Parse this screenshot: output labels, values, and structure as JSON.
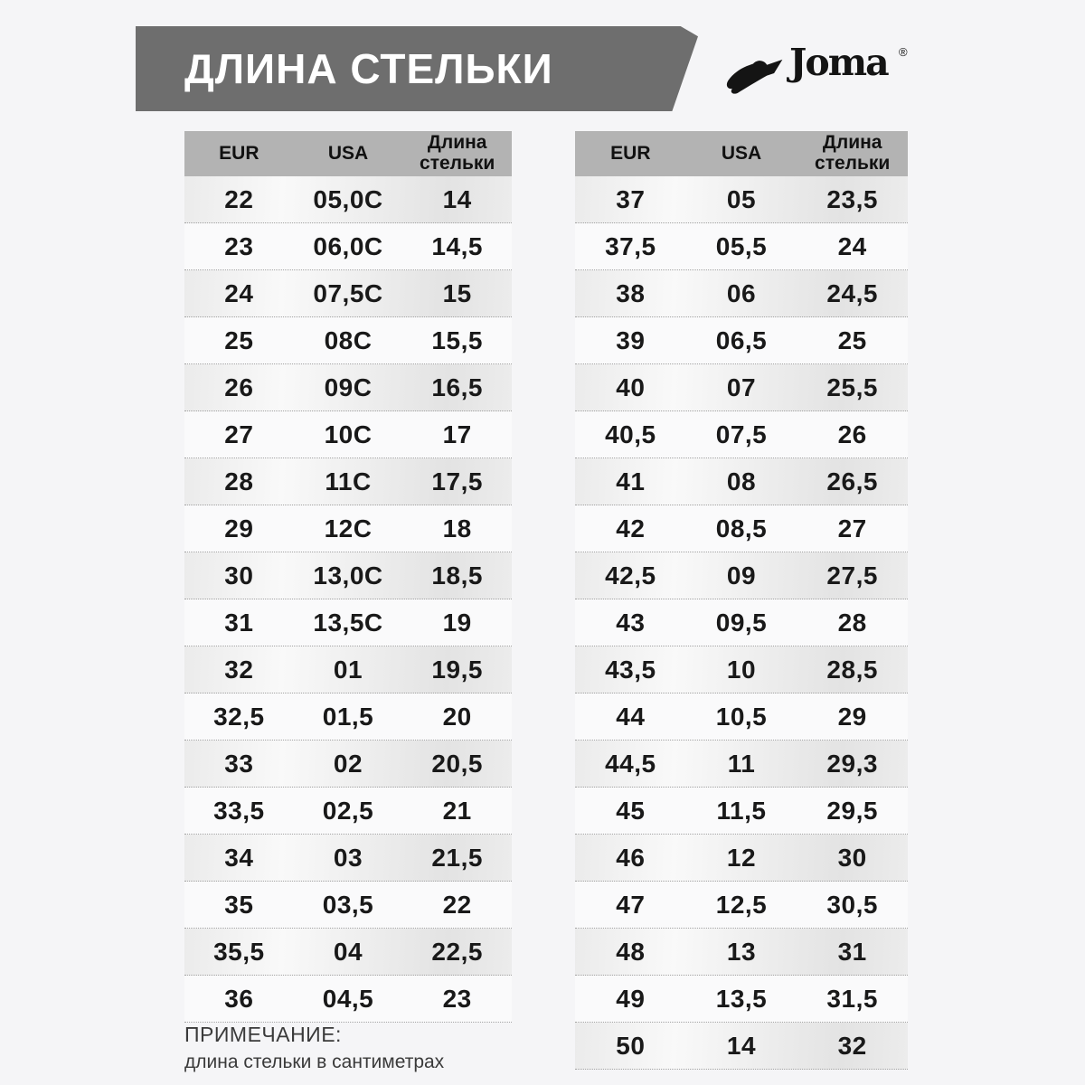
{
  "page_title": "ДЛИНА СТЕЛЬКИ",
  "logo": {
    "text": "Joma",
    "registered": "®",
    "icon": "joma-swoosh-icon"
  },
  "chart_data": [
    {
      "type": "table",
      "name": "left-size-table",
      "columns": [
        "EUR",
        "USA",
        "Длина стельки"
      ],
      "rows": [
        [
          "22",
          "05,0C",
          "14"
        ],
        [
          "23",
          "06,0C",
          "14,5"
        ],
        [
          "24",
          "07,5C",
          "15"
        ],
        [
          "25",
          "08C",
          "15,5"
        ],
        [
          "26",
          "09C",
          "16,5"
        ],
        [
          "27",
          "10C",
          "17"
        ],
        [
          "28",
          "11C",
          "17,5"
        ],
        [
          "29",
          "12C",
          "18"
        ],
        [
          "30",
          "13,0C",
          "18,5"
        ],
        [
          "31",
          "13,5C",
          "19"
        ],
        [
          "32",
          "01",
          "19,5"
        ],
        [
          "32,5",
          "01,5",
          "20"
        ],
        [
          "33",
          "02",
          "20,5"
        ],
        [
          "33,5",
          "02,5",
          "21"
        ],
        [
          "34",
          "03",
          "21,5"
        ],
        [
          "35",
          "03,5",
          "22"
        ],
        [
          "35,5",
          "04",
          "22,5"
        ],
        [
          "36",
          "04,5",
          "23"
        ]
      ]
    },
    {
      "type": "table",
      "name": "right-size-table",
      "columns": [
        "EUR",
        "USA",
        "Длина стельки"
      ],
      "rows": [
        [
          "37",
          "05",
          "23,5"
        ],
        [
          "37,5",
          "05,5",
          "24"
        ],
        [
          "38",
          "06",
          "24,5"
        ],
        [
          "39",
          "06,5",
          "25"
        ],
        [
          "40",
          "07",
          "25,5"
        ],
        [
          "40,5",
          "07,5",
          "26"
        ],
        [
          "41",
          "08",
          "26,5"
        ],
        [
          "42",
          "08,5",
          "27"
        ],
        [
          "42,5",
          "09",
          "27,5"
        ],
        [
          "43",
          "09,5",
          "28"
        ],
        [
          "43,5",
          "10",
          "28,5"
        ],
        [
          "44",
          "10,5",
          "29"
        ],
        [
          "44,5",
          "11",
          "29,3"
        ],
        [
          "45",
          "11,5",
          "29,5"
        ],
        [
          "46",
          "12",
          "30"
        ],
        [
          "47",
          "12,5",
          "30,5"
        ],
        [
          "48",
          "13",
          "31"
        ],
        [
          "49",
          "13,5",
          "31,5"
        ],
        [
          "50",
          "14",
          "32"
        ]
      ]
    }
  ],
  "note": {
    "title": "ПРИМЕЧАНИЕ:",
    "text": "длина стельки в сантиметрах"
  },
  "colors": {
    "page_bg": "#f5f5f7",
    "banner": "#6e6e6e",
    "table_header": "#b3b3b3",
    "text": "#191919",
    "logo": "#141414"
  }
}
